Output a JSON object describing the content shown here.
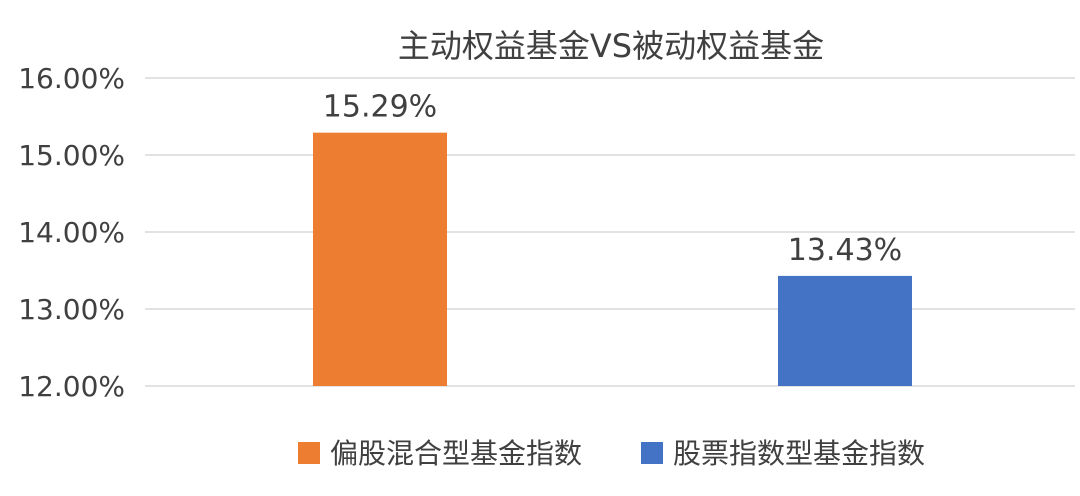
{
  "chart_data": {
    "type": "bar",
    "title": "主动权益基金VS被动权益基金",
    "xlabel": "",
    "ylabel": "",
    "ylim": [
      0.12,
      0.16
    ],
    "yticks": [
      "12.00%",
      "13.00%",
      "14.00%",
      "15.00%",
      "16.00%"
    ],
    "ytick_values": [
      0.12,
      0.13,
      0.14,
      0.15,
      0.16
    ],
    "grid": true,
    "legend_position": "bottom",
    "series": [
      {
        "name": "偏股混合型基金指数",
        "value": 0.1529,
        "label": "15.29%",
        "color": "#ED7D31"
      },
      {
        "name": "股票指数型基金指数",
        "value": 0.1343,
        "label": "13.43%",
        "color": "#4472C4"
      }
    ]
  }
}
